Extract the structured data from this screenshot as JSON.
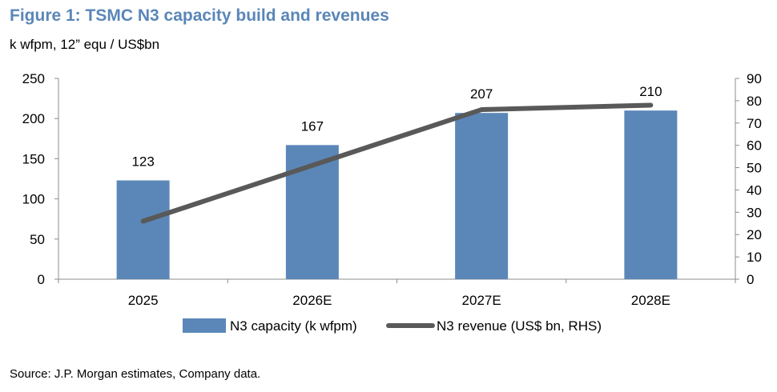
{
  "header": {
    "title": "Figure 1: TSMC N3 capacity build and revenues",
    "subtitle": "k wfpm, 12” equ / US$bn"
  },
  "footer": {
    "source": "Source: J.P. Morgan estimates, Company data."
  },
  "chart_data": {
    "type": "bar",
    "categories": [
      "2025",
      "2026E",
      "2027E",
      "2028E"
    ],
    "series": [
      {
        "name": "N3 capacity (k wfpm)",
        "type": "bar",
        "axis": "left",
        "values": [
          123,
          167,
          207,
          210
        ],
        "data_labels": [
          "123",
          "167",
          "207",
          "210"
        ],
        "color": "#5b87b8"
      },
      {
        "name": "N3 revenue (US$ bn, RHS)",
        "type": "line",
        "axis": "right",
        "values": [
          26,
          51,
          76,
          78
        ],
        "color": "#595959"
      }
    ],
    "y_left": {
      "range": [
        0,
        250
      ],
      "ticks": [
        "0",
        "50",
        "100",
        "150",
        "200",
        "250"
      ]
    },
    "y_right": {
      "range": [
        0,
        90
      ],
      "ticks": [
        "0",
        "10",
        "20",
        "30",
        "40",
        "50",
        "60",
        "70",
        "80",
        "90"
      ]
    },
    "grid": false,
    "legend_position": "bottom"
  }
}
